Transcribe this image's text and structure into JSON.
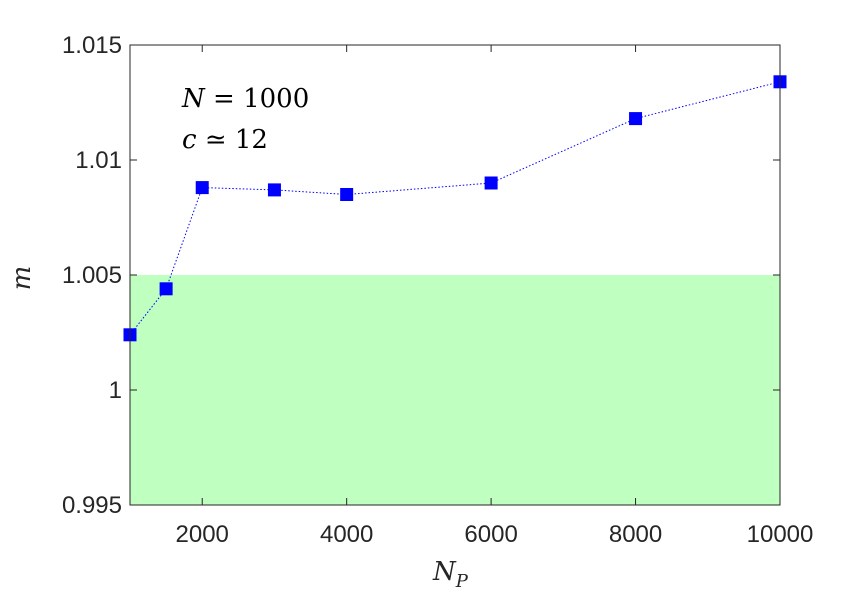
{
  "chart_data": {
    "type": "line",
    "title": "",
    "xlabel": "N",
    "xlabel_sub": "P",
    "ylabel": "m",
    "xlim": [
      1000,
      10000
    ],
    "ylim": [
      0.995,
      1.015
    ],
    "xticks": [
      2000,
      4000,
      6000,
      8000,
      10000
    ],
    "xtick_labels": [
      "2000",
      "4000",
      "6000",
      "8000",
      "10000"
    ],
    "yticks": [
      0.995,
      1,
      1.005,
      1.01,
      1.015
    ],
    "ytick_labels": [
      "0.995",
      "1",
      "1.005",
      "1.01",
      "1.015"
    ],
    "grid": false,
    "series": [
      {
        "x": [
          1000,
          1500,
          2000,
          3000,
          4000,
          6000,
          8000,
          10000
        ],
        "y": [
          1.0024,
          1.0044,
          1.0088,
          1.0087,
          1.0085,
          1.009,
          1.0118,
          1.0134
        ],
        "color": "#0000ff",
        "line_style": "dotted",
        "marker": "square"
      }
    ],
    "shaded_band": {
      "y_from": 0.995,
      "y_to": 1.005,
      "color": "#bfffbf"
    },
    "annotations": [
      {
        "text": "N = 1000"
      },
      {
        "text": "c ≃ 12"
      }
    ]
  }
}
